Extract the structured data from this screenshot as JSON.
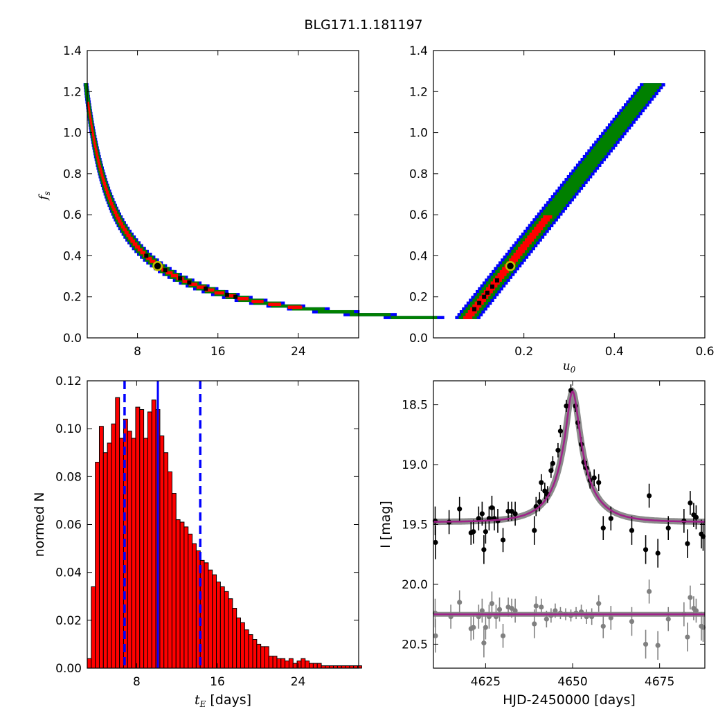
{
  "figure_title": "BLG171.1.181197",
  "colors": {
    "sigma3": "#0000ff",
    "sigma2": "#008000",
    "sigma1": "#ff0000",
    "best_grid": "#000000",
    "best_marker_edge": "#bfbf00",
    "histogram": "#ff0000",
    "median_line": "#0000ff",
    "model_line": "#a0208a",
    "model_band": "#808080",
    "residual_points": "#808080"
  },
  "chart_data": [
    {
      "id": "ts-fs",
      "type": "heatmap",
      "title": "",
      "xlabel": "",
      "ylabel": "f",
      "ylabel_sub": "s",
      "xlim": [
        3,
        30
      ],
      "ylim": [
        0.0,
        1.4
      ],
      "xticks": [
        "8",
        "16",
        "24"
      ],
      "xtick_values": [
        8,
        16,
        24
      ],
      "yticks": [
        "0.0",
        "0.2",
        "0.4",
        "0.6",
        "0.8",
        "1.0",
        "1.2",
        "1.4"
      ],
      "ytick_values": [
        0.0,
        0.2,
        0.4,
        0.6,
        0.8,
        1.0,
        1.2,
        1.4
      ],
      "relation": "x = 3.55 / y",
      "levels": [
        {
          "name": "3-sigma",
          "y_range": [
            0.1,
            1.24
          ],
          "width": 0.085
        },
        {
          "name": "2-sigma",
          "y_range": [
            0.1,
            1.24
          ],
          "width": 0.065
        },
        {
          "name": "1-sigma",
          "y_range": [
            0.15,
            1.15
          ],
          "width": 0.03
        }
      ],
      "best_cells_y": [
        0.4,
        0.33,
        0.29,
        0.27,
        0.24,
        0.21,
        0.2
      ],
      "best_fit": {
        "x": 10,
        "y": 0.35
      }
    },
    {
      "id": "u0-fs",
      "type": "heatmap",
      "title": "",
      "xlabel": "u",
      "xlabel_sub": "0",
      "ylabel": "",
      "xlim": [
        0.0,
        0.6
      ],
      "ylim": [
        0.0,
        1.4
      ],
      "xticks": [
        "0.2",
        "0.4",
        "0.6"
      ],
      "xtick_values": [
        0.2,
        0.4,
        0.6
      ],
      "yticks": [
        "0.0",
        "0.2",
        "0.4",
        "0.6",
        "0.8",
        "1.0",
        "1.2",
        "1.4"
      ],
      "ytick_values": [
        0.0,
        0.2,
        0.4,
        0.6,
        0.8,
        1.0,
        1.2,
        1.4
      ],
      "relation": "x = 0.04 + 0.36 * y",
      "levels": [
        {
          "name": "3-sigma",
          "y_range": [
            0.1,
            1.24
          ],
          "width": 0.028
        },
        {
          "name": "2-sigma",
          "y_range": [
            0.1,
            1.24
          ],
          "width": 0.02
        },
        {
          "name": "1-sigma",
          "y_range": [
            0.1,
            0.6
          ],
          "width": 0.01
        }
      ],
      "best_cells_y": [
        0.14,
        0.17,
        0.2,
        0.22,
        0.25,
        0.28
      ],
      "best_fit": {
        "x": 0.17,
        "y": 0.35
      }
    },
    {
      "id": "te-hist",
      "type": "bar",
      "title": "",
      "xlabel": "t",
      "xlabel_sub": "E",
      "xlabel_rest": " [days]",
      "ylabel": "normed N",
      "xlim": [
        3.1,
        30
      ],
      "ylim": [
        0.0,
        0.12
      ],
      "xticks": [
        "8",
        "16",
        "24"
      ],
      "xtick_values": [
        8,
        16,
        24
      ],
      "yticks": [
        "0.00",
        "0.02",
        "0.04",
        "0.06",
        "0.08",
        "0.10",
        "0.12"
      ],
      "ytick_values": [
        0.0,
        0.02,
        0.04,
        0.06,
        0.08,
        0.1,
        0.12
      ],
      "bin_start": 3.1,
      "bin_width": 0.4,
      "values": [
        0.004,
        0.034,
        0.086,
        0.101,
        0.09,
        0.094,
        0.102,
        0.113,
        0.096,
        0.104,
        0.099,
        0.096,
        0.109,
        0.108,
        0.096,
        0.107,
        0.112,
        0.108,
        0.097,
        0.09,
        0.082,
        0.073,
        0.062,
        0.061,
        0.059,
        0.056,
        0.052,
        0.049,
        0.045,
        0.044,
        0.041,
        0.039,
        0.036,
        0.034,
        0.032,
        0.029,
        0.025,
        0.021,
        0.019,
        0.016,
        0.014,
        0.012,
        0.01,
        0.009,
        0.009,
        0.005,
        0.005,
        0.004,
        0.004,
        0.003,
        0.004,
        0.002,
        0.003,
        0.004,
        0.003,
        0.002,
        0.002,
        0.002,
        0.001,
        0.001,
        0.001,
        0.001,
        0.001,
        0.001,
        0.001,
        0.001,
        0.001,
        0.001,
        0.001,
        0.001
      ],
      "median": 10.1,
      "lower_bound": 6.8,
      "upper_bound": 14.3
    },
    {
      "id": "lightcurve",
      "type": "scatter",
      "title": "",
      "xlabel": "HJD-2450000 [days]",
      "ylabel": "I [mag]",
      "xlim": [
        4610,
        4688
      ],
      "ylim": [
        20.7,
        18.3
      ],
      "inverted_y": true,
      "xticks": [
        "4625",
        "4650",
        "4675"
      ],
      "xtick_values": [
        4625,
        4650,
        4675
      ],
      "yticks": [
        "18.5",
        "19.0",
        "19.5",
        "20.0",
        "20.5"
      ],
      "ytick_values": [
        18.5,
        19.0,
        19.5,
        20.0,
        20.5
      ],
      "model": {
        "t0": 4650,
        "tE": 10.0,
        "u0": 0.17,
        "fs": 0.35,
        "baseline": 19.48
      },
      "residual_baseline": 20.25,
      "series": [
        {
          "name": "data",
          "points": [
            {
              "x": 4610.5,
              "y": 19.47,
              "err": 0.12
            },
            {
              "x": 4610.6,
              "y": 19.65,
              "err": 0.14
            },
            {
              "x": 4614.5,
              "y": 19.48,
              "err": 0.1
            },
            {
              "x": 4617.5,
              "y": 19.37,
              "err": 0.1
            },
            {
              "x": 4620.8,
              "y": 19.57,
              "err": 0.1
            },
            {
              "x": 4621.5,
              "y": 19.56,
              "err": 0.1
            },
            {
              "x": 4623.0,
              "y": 19.45,
              "err": 0.1
            },
            {
              "x": 4624.0,
              "y": 19.41,
              "err": 0.1
            },
            {
              "x": 4624.5,
              "y": 19.71,
              "err": 0.12
            },
            {
              "x": 4625.0,
              "y": 19.56,
              "err": 0.1
            },
            {
              "x": 4626.0,
              "y": 19.45,
              "err": 0.1
            },
            {
              "x": 4626.8,
              "y": 19.36,
              "err": 0.1
            },
            {
              "x": 4627.5,
              "y": 19.45,
              "err": 0.1
            },
            {
              "x": 4628.5,
              "y": 19.47,
              "err": 0.1
            },
            {
              "x": 4630.0,
              "y": 19.63,
              "err": 0.1
            },
            {
              "x": 4631.5,
              "y": 19.39,
              "err": 0.08
            },
            {
              "x": 4632.5,
              "y": 19.39,
              "err": 0.08
            },
            {
              "x": 4633.5,
              "y": 19.41,
              "err": 0.1
            },
            {
              "x": 4639.0,
              "y": 19.55,
              "err": 0.12
            },
            {
              "x": 4639.5,
              "y": 19.35,
              "err": 0.08
            },
            {
              "x": 4640.5,
              "y": 19.31,
              "err": 0.08
            },
            {
              "x": 4641.0,
              "y": 19.15,
              "err": 0.07
            },
            {
              "x": 4642.0,
              "y": 19.22,
              "err": 0.07
            },
            {
              "x": 4642.8,
              "y": 19.25,
              "err": 0.07
            },
            {
              "x": 4643.8,
              "y": 19.05,
              "err": 0.06
            },
            {
              "x": 4644.3,
              "y": 18.99,
              "err": 0.06
            },
            {
              "x": 4645.8,
              "y": 18.88,
              "err": 0.06
            },
            {
              "x": 4646.5,
              "y": 18.72,
              "err": 0.05
            },
            {
              "x": 4648.2,
              "y": 18.51,
              "err": 0.05
            },
            {
              "x": 4649.5,
              "y": 18.38,
              "err": 0.05
            },
            {
              "x": 4650.8,
              "y": 18.51,
              "err": 0.05
            },
            {
              "x": 4651.5,
              "y": 18.65,
              "err": 0.05
            },
            {
              "x": 4652.5,
              "y": 18.83,
              "err": 0.06
            },
            {
              "x": 4653.2,
              "y": 18.98,
              "err": 0.06
            },
            {
              "x": 4654.0,
              "y": 19.03,
              "err": 0.06
            },
            {
              "x": 4655.0,
              "y": 19.13,
              "err": 0.07
            },
            {
              "x": 4656.2,
              "y": 19.11,
              "err": 0.07
            },
            {
              "x": 4657.5,
              "y": 19.15,
              "err": 0.07
            },
            {
              "x": 4658.8,
              "y": 19.53,
              "err": 0.1
            },
            {
              "x": 4661.0,
              "y": 19.45,
              "err": 0.1
            },
            {
              "x": 4667.0,
              "y": 19.55,
              "err": 0.12
            },
            {
              "x": 4671.0,
              "y": 19.71,
              "err": 0.12
            },
            {
              "x": 4672.0,
              "y": 19.26,
              "err": 0.1
            },
            {
              "x": 4674.5,
              "y": 19.74,
              "err": 0.12
            },
            {
              "x": 4677.5,
              "y": 19.53,
              "err": 0.1
            },
            {
              "x": 4682.0,
              "y": 19.47,
              "err": 0.1
            },
            {
              "x": 4683.0,
              "y": 19.66,
              "err": 0.12
            },
            {
              "x": 4683.8,
              "y": 19.32,
              "err": 0.1
            },
            {
              "x": 4684.8,
              "y": 19.42,
              "err": 0.1
            },
            {
              "x": 4685.5,
              "y": 19.44,
              "err": 0.1
            },
            {
              "x": 4687.0,
              "y": 19.58,
              "err": 0.12
            },
            {
              "x": 4687.5,
              "y": 19.6,
              "err": 0.12
            }
          ]
        },
        {
          "name": "residuals",
          "points": [
            {
              "x": 4610.5,
              "y": 20.24,
              "err": 0.12
            },
            {
              "x": 4610.6,
              "y": 20.43,
              "err": 0.14
            },
            {
              "x": 4615.0,
              "y": 20.27,
              "err": 0.1
            },
            {
              "x": 4617.5,
              "y": 20.15,
              "err": 0.1
            },
            {
              "x": 4620.8,
              "y": 20.37,
              "err": 0.1
            },
            {
              "x": 4621.5,
              "y": 20.36,
              "err": 0.1
            },
            {
              "x": 4623.0,
              "y": 20.27,
              "err": 0.1
            },
            {
              "x": 4624.0,
              "y": 20.22,
              "err": 0.1
            },
            {
              "x": 4624.5,
              "y": 20.49,
              "err": 0.12
            },
            {
              "x": 4625.0,
              "y": 20.36,
              "err": 0.1
            },
            {
              "x": 4626.0,
              "y": 20.27,
              "err": 0.1
            },
            {
              "x": 4626.8,
              "y": 20.16,
              "err": 0.1
            },
            {
              "x": 4628.0,
              "y": 20.27,
              "err": 0.1
            },
            {
              "x": 4629.0,
              "y": 20.21,
              "err": 0.1
            },
            {
              "x": 4630.0,
              "y": 20.43,
              "err": 0.1
            },
            {
              "x": 4631.5,
              "y": 20.19,
              "err": 0.08
            },
            {
              "x": 4632.5,
              "y": 20.2,
              "err": 0.08
            },
            {
              "x": 4633.5,
              "y": 20.22,
              "err": 0.1
            },
            {
              "x": 4639.0,
              "y": 20.33,
              "err": 0.12
            },
            {
              "x": 4639.5,
              "y": 20.18,
              "err": 0.08
            },
            {
              "x": 4641.0,
              "y": 20.19,
              "err": 0.07
            },
            {
              "x": 4642.5,
              "y": 20.29,
              "err": 0.07
            },
            {
              "x": 4643.8,
              "y": 20.26,
              "err": 0.06
            },
            {
              "x": 4645.0,
              "y": 20.22,
              "err": 0.06
            },
            {
              "x": 4646.5,
              "y": 20.24,
              "err": 0.05
            },
            {
              "x": 4648.0,
              "y": 20.25,
              "err": 0.05
            },
            {
              "x": 4649.5,
              "y": 20.26,
              "err": 0.05
            },
            {
              "x": 4651.0,
              "y": 20.24,
              "err": 0.05
            },
            {
              "x": 4652.5,
              "y": 20.23,
              "err": 0.06
            },
            {
              "x": 4654.0,
              "y": 20.27,
              "err": 0.06
            },
            {
              "x": 4655.5,
              "y": 20.27,
              "err": 0.07
            },
            {
              "x": 4657.5,
              "y": 20.16,
              "err": 0.07
            },
            {
              "x": 4658.8,
              "y": 20.35,
              "err": 0.1
            },
            {
              "x": 4661.0,
              "y": 20.28,
              "err": 0.1
            },
            {
              "x": 4667.0,
              "y": 20.31,
              "err": 0.12
            },
            {
              "x": 4671.0,
              "y": 20.5,
              "err": 0.12
            },
            {
              "x": 4672.0,
              "y": 20.06,
              "err": 0.1
            },
            {
              "x": 4674.5,
              "y": 20.51,
              "err": 0.12
            },
            {
              "x": 4677.5,
              "y": 20.29,
              "err": 0.1
            },
            {
              "x": 4682.0,
              "y": 20.25,
              "err": 0.1
            },
            {
              "x": 4683.0,
              "y": 20.44,
              "err": 0.12
            },
            {
              "x": 4683.8,
              "y": 20.11,
              "err": 0.1
            },
            {
              "x": 4684.8,
              "y": 20.2,
              "err": 0.1
            },
            {
              "x": 4685.5,
              "y": 20.22,
              "err": 0.1
            },
            {
              "x": 4687.0,
              "y": 20.35,
              "err": 0.12
            },
            {
              "x": 4687.5,
              "y": 20.36,
              "err": 0.12
            }
          ]
        }
      ]
    }
  ]
}
